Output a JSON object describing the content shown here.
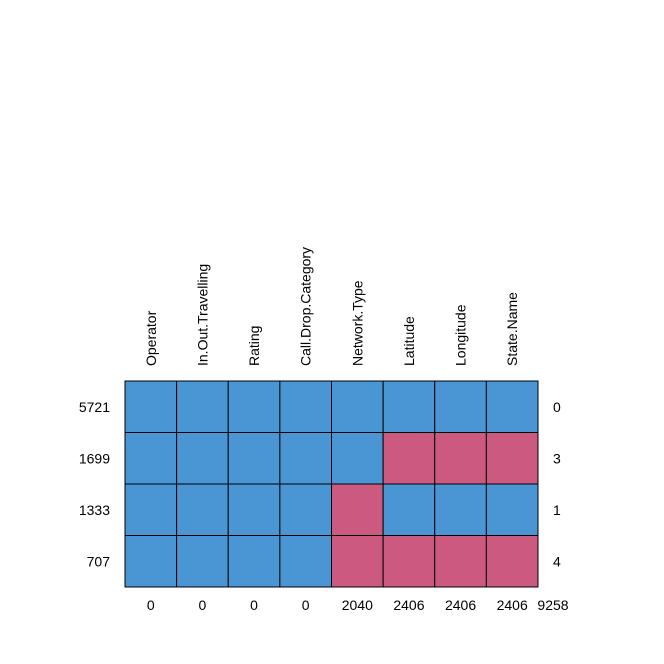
{
  "chart_data": {
    "type": "heatmap",
    "columns": [
      "Operator",
      "In.Out.Travelling",
      "Rating",
      "Call.Drop.Category",
      "Network.Type",
      "Latitude",
      "Longitude",
      "State.Name"
    ],
    "rows": [
      {
        "frequency": "5721",
        "missing_count": "0",
        "pattern": [
          0,
          0,
          0,
          0,
          0,
          0,
          0,
          0
        ]
      },
      {
        "frequency": "1699",
        "missing_count": "3",
        "pattern": [
          0,
          0,
          0,
          0,
          0,
          1,
          1,
          1
        ]
      },
      {
        "frequency": "1333",
        "missing_count": "1",
        "pattern": [
          0,
          0,
          0,
          0,
          1,
          0,
          0,
          0
        ]
      },
      {
        "frequency": "707",
        "missing_count": "4",
        "pattern": [
          0,
          0,
          0,
          0,
          1,
          1,
          1,
          1
        ]
      }
    ],
    "column_missing_totals": [
      "0",
      "0",
      "0",
      "0",
      "2040",
      "2406",
      "2406",
      "2406"
    ],
    "total_missing": "9258",
    "colors": {
      "observed": "#4a96d4",
      "missing": "#cc5a80",
      "border": "#000000"
    }
  }
}
